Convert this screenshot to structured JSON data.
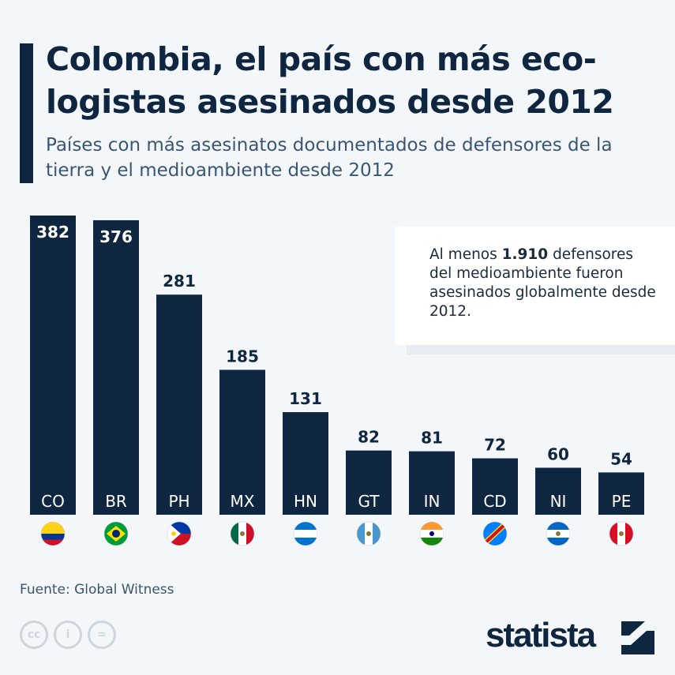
{
  "header": {
    "title": "Colombia, el país con más eco-logistas asesinados desde 2012",
    "subtitle": "Países con más asesinatos documentados de defensores de la tierra y el medioambiente desde 2012"
  },
  "note": {
    "prefix": "Al menos ",
    "highlight": "1.910",
    "suffix": " defensores del medioambiente fueron asesinados globalmente desde 2012."
  },
  "footer": {
    "source": "Fuente: Global Witness",
    "cc": "cc",
    "by": "i",
    "nd": "=",
    "logo": "statista"
  },
  "colors": {
    "bar": "#0f2640",
    "background": "#f4f7fa",
    "text": "#0f2640"
  },
  "chart_data": {
    "type": "bar",
    "title": "",
    "xlabel": "",
    "ylabel": "",
    "ylim": [
      0,
      382
    ],
    "grid": false,
    "categories": [
      "CO",
      "BR",
      "PH",
      "MX",
      "HN",
      "GT",
      "IN",
      "CD",
      "NI",
      "PE"
    ],
    "values": [
      382,
      376,
      281,
      185,
      131,
      82,
      81,
      72,
      60,
      54
    ]
  }
}
